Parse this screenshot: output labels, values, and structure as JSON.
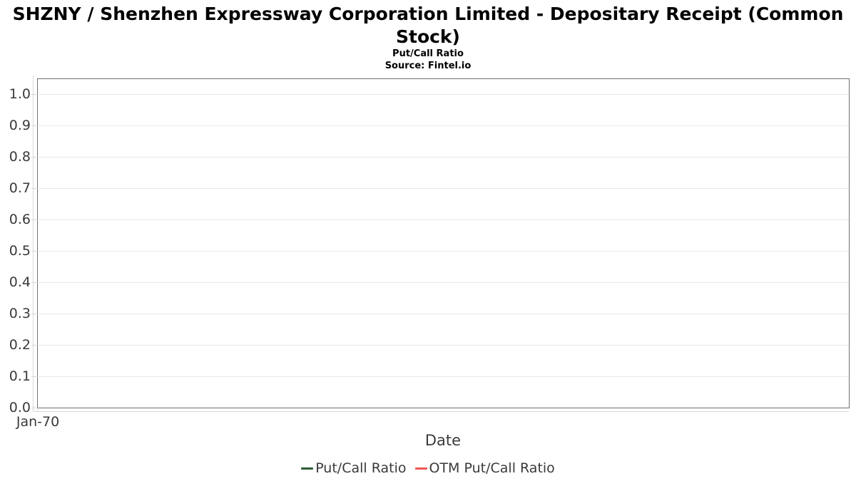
{
  "header": {
    "title": "SHZNY / Shenzhen Expressway Corporation Limited - Depositary Receipt (Common Stock)",
    "subtitle": "Put/Call Ratio",
    "source": "Source: Fintel.io"
  },
  "chart_data": {
    "type": "line",
    "title": "SHZNY / Shenzhen Expressway Corporation Limited - Depositary Receipt (Common Stock)",
    "subtitle": "Put/Call Ratio",
    "source": "Source: Fintel.io",
    "xlabel": "Date",
    "ylabel": "",
    "x_tick_labels": [
      "Jan-70"
    ],
    "y_ticks": [
      "1.0",
      "0.9",
      "0.8",
      "0.7",
      "0.6",
      "0.5",
      "0.4",
      "0.3",
      "0.2",
      "0.1",
      "0.0"
    ],
    "ylim": [
      0.0,
      1.05
    ],
    "grid": true,
    "legend_position": "bottom",
    "series": [
      {
        "name": "Put/Call Ratio",
        "color": "#2c5f34",
        "x": [],
        "values": []
      },
      {
        "name": "OTM Put/Call Ratio",
        "color": "#f15656",
        "x": [],
        "values": []
      }
    ],
    "note": "empty chart - no data points plotted"
  },
  "colors": {
    "plot_border": "#707070",
    "gridline": "#e9e9e9",
    "axis_line": "#d9d9d9",
    "label_text": "#3a3a3a",
    "title_text": "#000000",
    "background": "#ffffff"
  }
}
